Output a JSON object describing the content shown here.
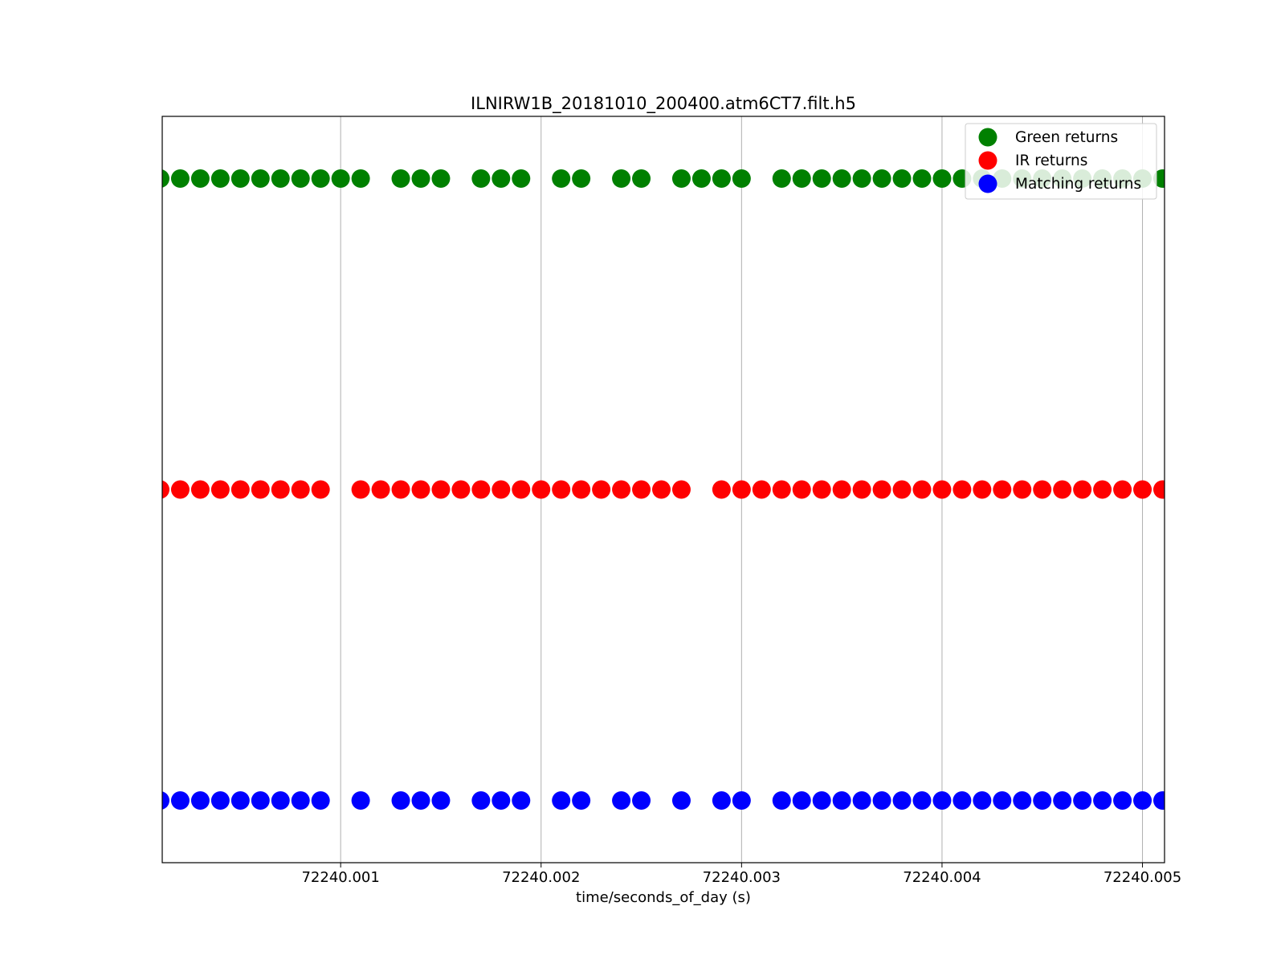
{
  "chart_data": {
    "type": "scatter",
    "title": "ILNIRW1B_20181010_200400.atm6CT7.filt.h5",
    "xlabel": "time/seconds_of_day (s)",
    "ylabel": "",
    "x_ticks": [
      "72240.001",
      "72240.002",
      "72240.003",
      "72240.004",
      "72240.005"
    ],
    "x_tick_values": [
      72240.001,
      72240.002,
      72240.003,
      72240.004,
      72240.005
    ],
    "xlim": [
      72240.00011,
      72240.00511
    ],
    "ylim": [
      0.8,
      3.2
    ],
    "grid": "x-major",
    "legend_position": "top-right",
    "series": [
      {
        "name": "Green returns",
        "color": "#008000",
        "y": 3,
        "x": [
          72240.0001,
          72240.0002,
          72240.0003,
          72240.0004,
          72240.0005,
          72240.0006,
          72240.0007,
          72240.0008,
          72240.0009,
          72240.001,
          72240.0011,
          72240.0013,
          72240.0014,
          72240.0015,
          72240.0017,
          72240.0018,
          72240.0019,
          72240.0021,
          72240.0022,
          72240.0024,
          72240.0025,
          72240.0027,
          72240.0028,
          72240.0029,
          72240.003,
          72240.0032,
          72240.0033,
          72240.0034,
          72240.0035,
          72240.0036,
          72240.0037,
          72240.0038,
          72240.0039,
          72240.004,
          72240.0041,
          72240.0042,
          72240.0043,
          72240.0044,
          72240.0045,
          72240.0046,
          72240.0047,
          72240.0048,
          72240.0049,
          72240.005,
          72240.0051
        ]
      },
      {
        "name": "IR returns",
        "color": "#ff0000",
        "y": 2,
        "x": [
          72240.0001,
          72240.0002,
          72240.0003,
          72240.0004,
          72240.0005,
          72240.0006,
          72240.0007,
          72240.0008,
          72240.0009,
          72240.0011,
          72240.0012,
          72240.0013,
          72240.0014,
          72240.0015,
          72240.0016,
          72240.0017,
          72240.0018,
          72240.0019,
          72240.002,
          72240.0021,
          72240.0022,
          72240.0023,
          72240.0024,
          72240.0025,
          72240.0026,
          72240.0027,
          72240.0029,
          72240.003,
          72240.0031,
          72240.0032,
          72240.0033,
          72240.0034,
          72240.0035,
          72240.0036,
          72240.0037,
          72240.0038,
          72240.0039,
          72240.004,
          72240.0041,
          72240.0042,
          72240.0043,
          72240.0044,
          72240.0045,
          72240.0046,
          72240.0047,
          72240.0048,
          72240.0049,
          72240.005,
          72240.0051
        ]
      },
      {
        "name": "Matching returns",
        "color": "#0000ff",
        "y": 1,
        "x": [
          72240.0001,
          72240.0002,
          72240.0003,
          72240.0004,
          72240.0005,
          72240.0006,
          72240.0007,
          72240.0008,
          72240.0009,
          72240.0011,
          72240.0013,
          72240.0014,
          72240.0015,
          72240.0017,
          72240.0018,
          72240.0019,
          72240.0021,
          72240.0022,
          72240.0024,
          72240.0025,
          72240.0027,
          72240.0029,
          72240.003,
          72240.0032,
          72240.0033,
          72240.0034,
          72240.0035,
          72240.0036,
          72240.0037,
          72240.0038,
          72240.0039,
          72240.004,
          72240.0041,
          72240.0042,
          72240.0043,
          72240.0044,
          72240.0045,
          72240.0046,
          72240.0047,
          72240.0048,
          72240.0049,
          72240.005,
          72240.0051
        ]
      }
    ]
  }
}
